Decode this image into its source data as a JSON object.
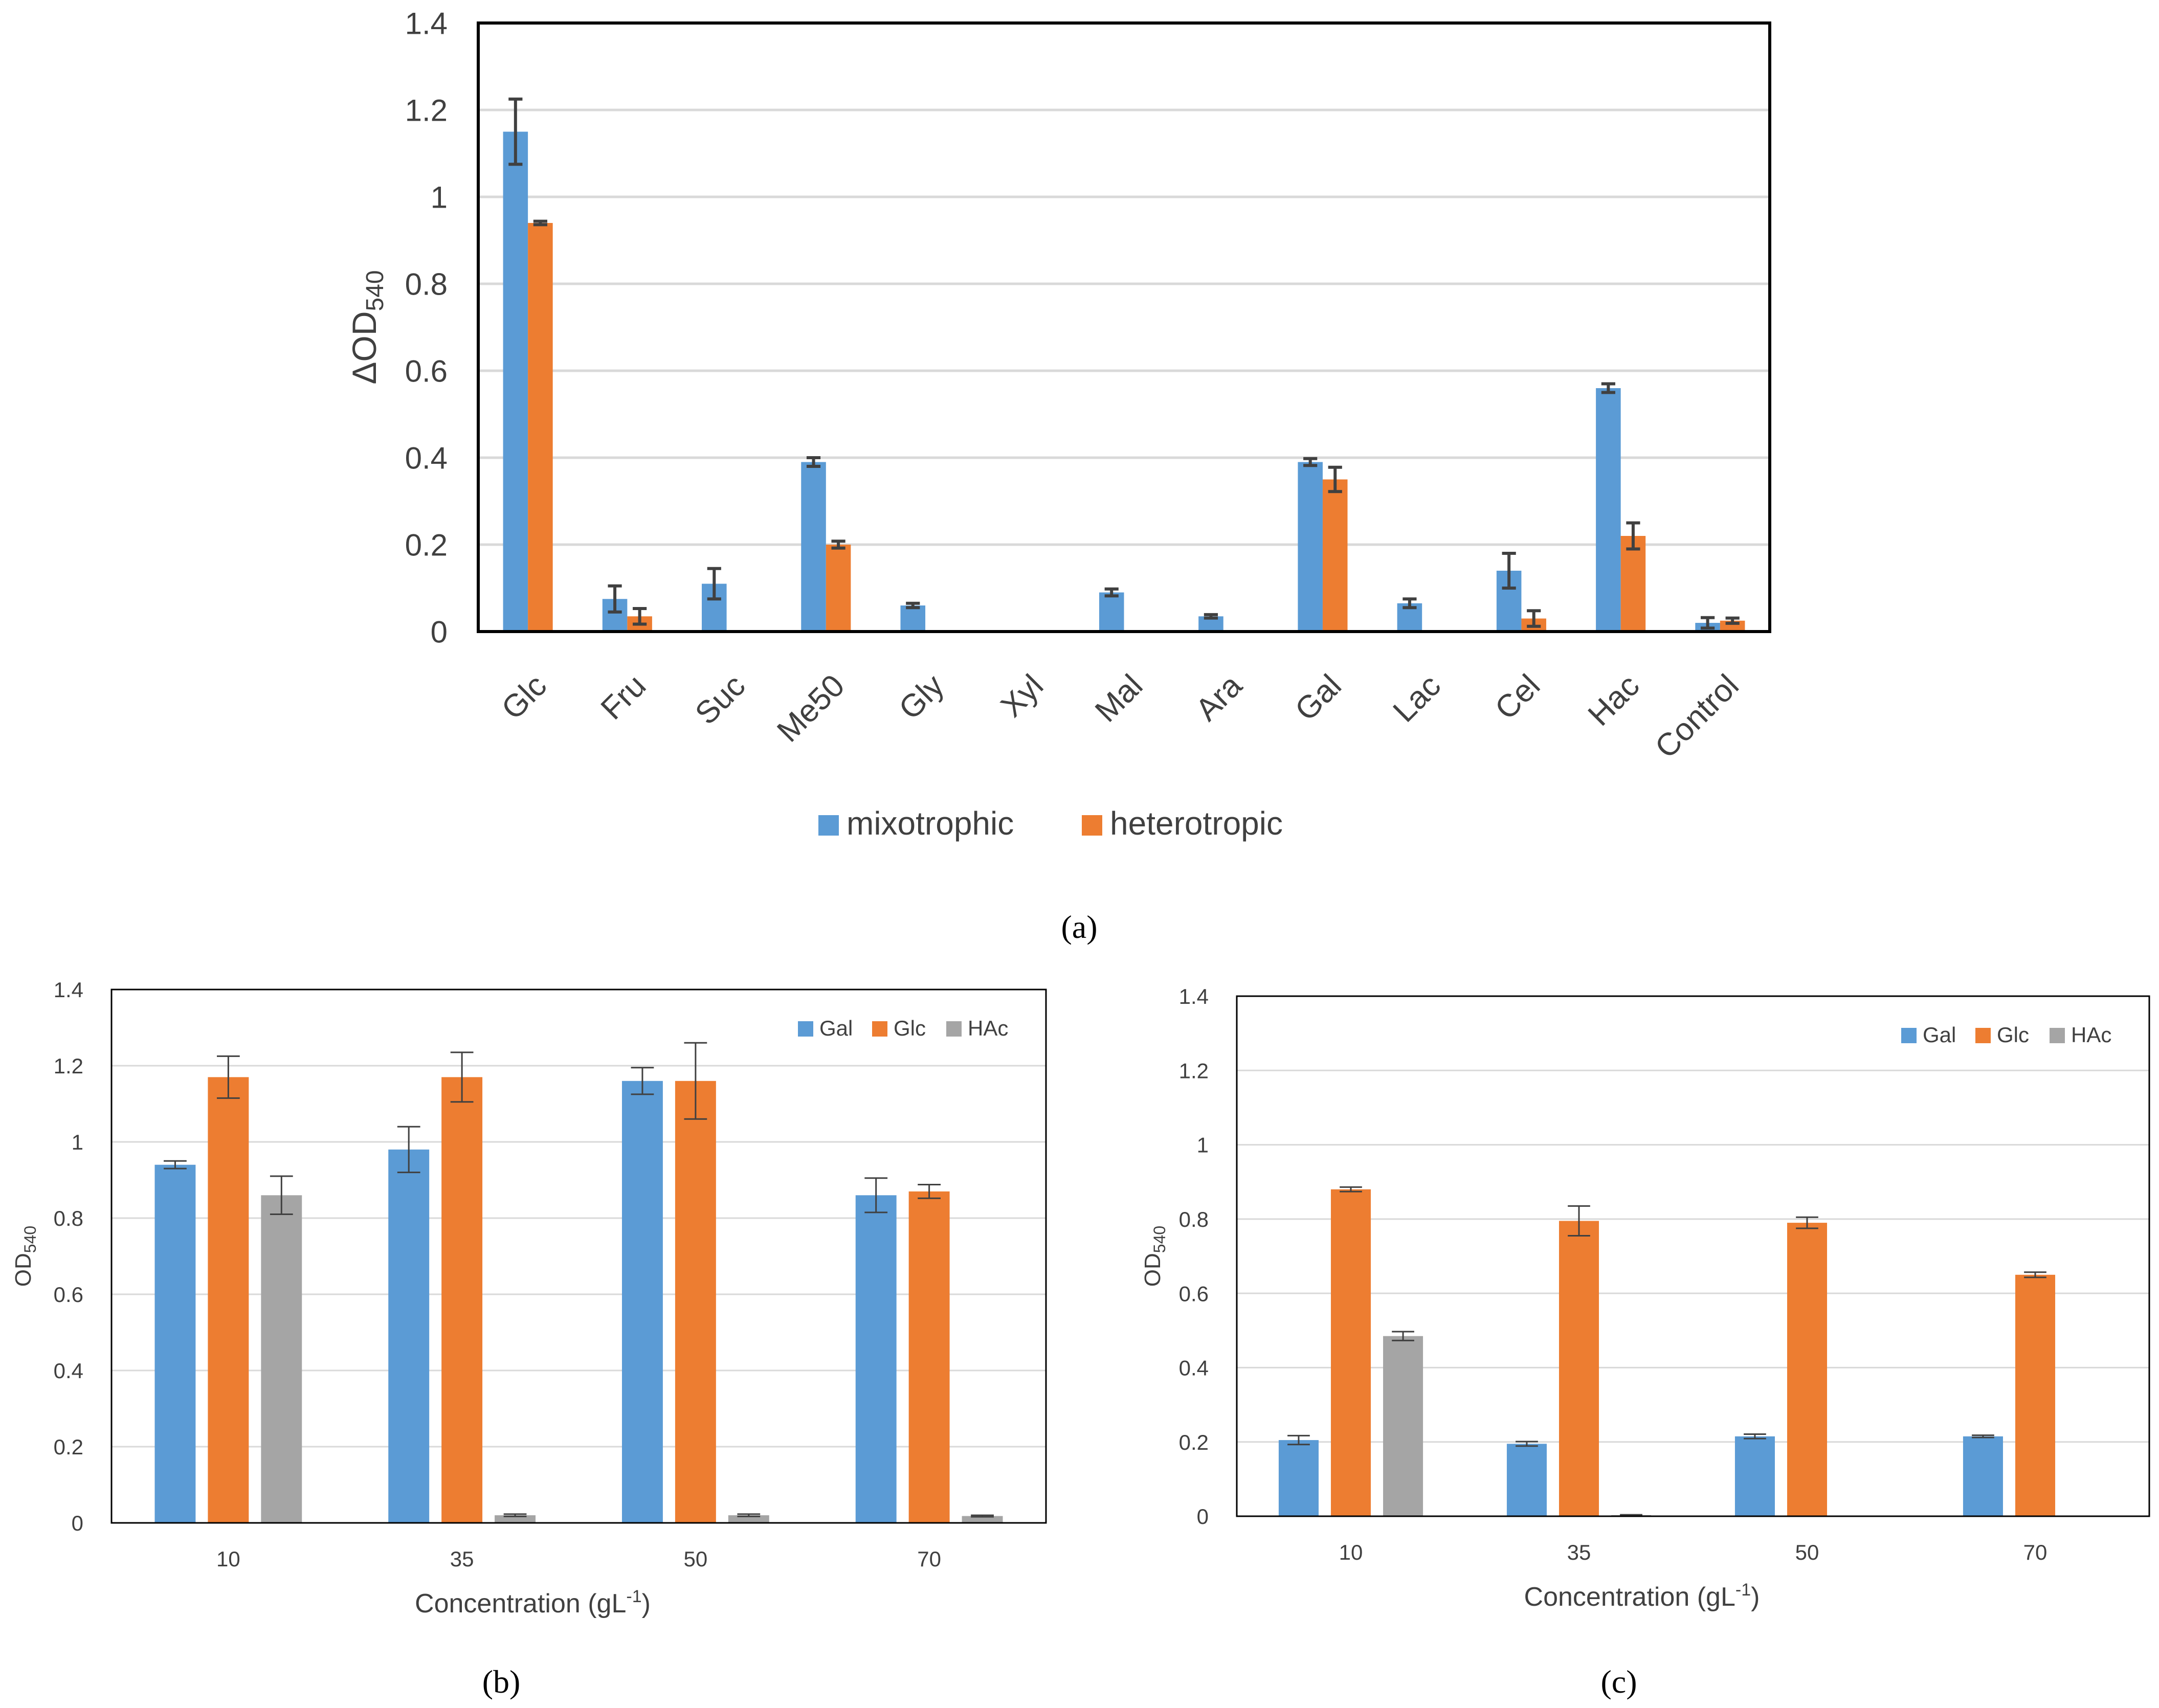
{
  "figure": {
    "panel_labels": [
      "(a)",
      "(b)",
      "(c)"
    ]
  },
  "colors": {
    "blue": "#5b9bd5",
    "orange": "#ed7d31",
    "gray": "#a5a5a5",
    "grid": "#d9d9d9",
    "err": "#404040"
  },
  "chart_data": [
    {
      "id": "a",
      "type": "bar",
      "title": "",
      "panel_label": "(a)",
      "xlabel": "",
      "ylabel": "ΔOD",
      "ylabel_sub": "540",
      "ylim": [
        0,
        1.4
      ],
      "yticks": [
        "0",
        "0.2",
        "0.4",
        "0.6",
        "0.8",
        "1",
        "1.2",
        "1.4"
      ],
      "grid": true,
      "legend_position": "bottom",
      "categories": [
        "Glc",
        "Fru",
        "Suc",
        "Me50",
        "Gly",
        "Xyl",
        "Mal",
        "Ara",
        "Gal",
        "Lac",
        "Cel",
        "Hac",
        "Control"
      ],
      "series": [
        {
          "name": "mixotrophic",
          "color": "#5b9bd5",
          "values": [
            1.15,
            0.075,
            0.11,
            0.39,
            0.06,
            0,
            0.09,
            0.035,
            0.39,
            0.065,
            0.14,
            0.56,
            0.02
          ],
          "errors": [
            0.075,
            0.03,
            0.035,
            0.01,
            0.005,
            0,
            0.008,
            0.004,
            0.008,
            0.01,
            0.04,
            0.01,
            0.012
          ]
        },
        {
          "name": "heterotropic",
          "color": "#ed7d31",
          "values": [
            0.94,
            0.035,
            0,
            0.2,
            0,
            0,
            0,
            0,
            0.35,
            0,
            0.03,
            0.22,
            0.025
          ],
          "errors": [
            0.004,
            0.018,
            0,
            0.008,
            0,
            0,
            0,
            0,
            0.028,
            0,
            0.018,
            0.03,
            0.006
          ]
        }
      ]
    },
    {
      "id": "b",
      "type": "bar",
      "title": "",
      "panel_label": "(b)",
      "xlabel": "Concentration (gL",
      "xlabel_sup": "-1",
      "xlabel_end": ")",
      "ylabel": "OD",
      "ylabel_sub": "540",
      "ylim": [
        0,
        1.4
      ],
      "yticks": [
        "0",
        "0.2",
        "0.4",
        "0.6",
        "0.8",
        "1",
        "1.2",
        "1.4"
      ],
      "grid": true,
      "legend_position": "top-right",
      "categories": [
        "10",
        "35",
        "50",
        "70"
      ],
      "series": [
        {
          "name": "Gal",
          "color": "#5b9bd5",
          "values": [
            0.94,
            0.98,
            1.16,
            0.86
          ],
          "errors": [
            0.01,
            0.06,
            0.035,
            0.045
          ]
        },
        {
          "name": "Glc",
          "color": "#ed7d31",
          "values": [
            1.17,
            1.17,
            1.16,
            0.87
          ],
          "errors": [
            0.055,
            0.065,
            0.1,
            0.018
          ]
        },
        {
          "name": "HAc",
          "color": "#a5a5a5",
          "values": [
            0.86,
            0.02,
            0.02,
            0.018
          ],
          "errors": [
            0.05,
            0.003,
            0.003,
            0.002
          ]
        }
      ]
    },
    {
      "id": "c",
      "type": "bar",
      "title": "",
      "panel_label": "(c)",
      "xlabel": "Concentration (gL",
      "xlabel_sup": "-1",
      "xlabel_end": ")",
      "ylabel": "OD",
      "ylabel_sub": "540",
      "ylim": [
        0,
        1.4
      ],
      "yticks": [
        "0",
        "0.2",
        "0.4",
        "0.6",
        "0.8",
        "1",
        "1.2",
        "1.4"
      ],
      "grid": true,
      "legend_position": "top-right",
      "categories": [
        "10",
        "35",
        "50",
        "70"
      ],
      "series": [
        {
          "name": "Gal",
          "color": "#5b9bd5",
          "values": [
            0.205,
            0.195,
            0.215,
            0.215
          ],
          "errors": [
            0.012,
            0.006,
            0.006,
            0.003
          ]
        },
        {
          "name": "Glc",
          "color": "#ed7d31",
          "values": [
            0.88,
            0.795,
            0.79,
            0.65
          ],
          "errors": [
            0.006,
            0.04,
            0.015,
            0.007
          ]
        },
        {
          "name": "HAc",
          "color": "#a5a5a5",
          "values": [
            0.485,
            0.003,
            0,
            0
          ],
          "errors": [
            0.012,
            0.001,
            0,
            0
          ]
        }
      ]
    }
  ]
}
